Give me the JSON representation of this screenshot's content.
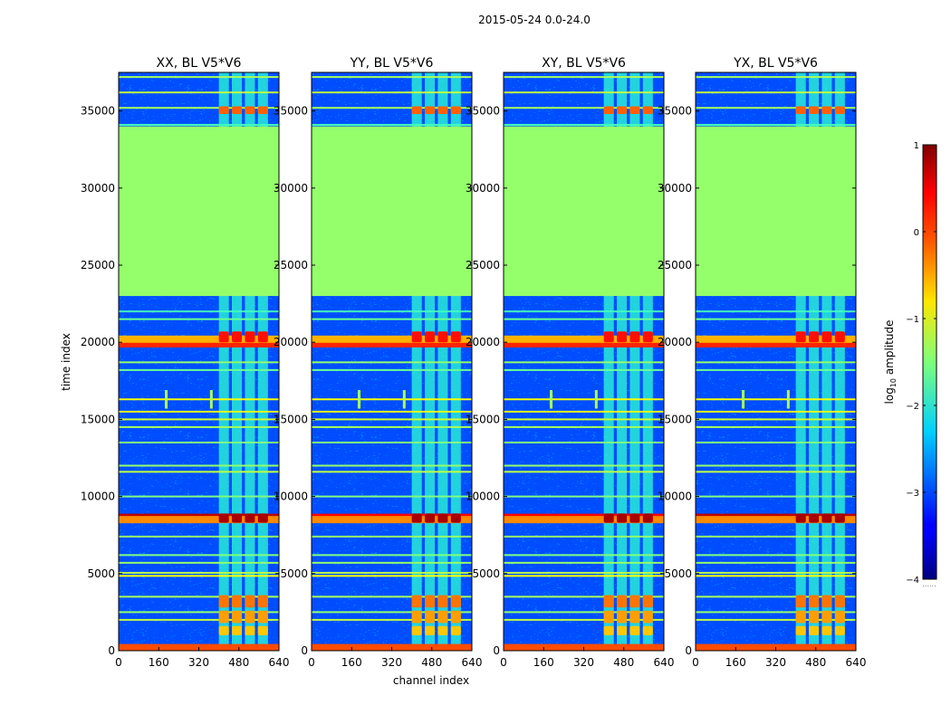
{
  "figure_title": "2015-05-24 0.0-24.0",
  "chart_data": {
    "type": "heatmap",
    "title": "2015-05-24 0.0-24.0",
    "xlabel": "channel index",
    "ylabel": "time index",
    "xlim": [
      0,
      640
    ],
    "ylim": [
      0,
      37500
    ],
    "xticks": [
      "0",
      "160",
      "320",
      "480",
      "640"
    ],
    "yticks": [
      "0",
      "5000",
      "10000",
      "15000",
      "20000",
      "25000",
      "30000",
      "35000"
    ],
    "xtick_values": [
      0,
      160,
      320,
      480,
      640
    ],
    "ytick_values": [
      0,
      5000,
      10000,
      15000,
      20000,
      25000,
      30000,
      35000
    ],
    "panels": [
      {
        "title": "XX, BL V5*V6",
        "strong_band": true
      },
      {
        "title": "YY, BL V5*V6",
        "strong_band": false
      },
      {
        "title": "XY, BL V5*V6",
        "strong_band": false
      },
      {
        "title": "YX, BL V5*V6",
        "strong_band": true
      }
    ],
    "flagged_range": {
      "start": 23000,
      "end": 34000,
      "value": -1.4
    },
    "background_value": -3.0,
    "channel_blocks": [
      [
        400,
        440
      ],
      [
        452,
        492
      ],
      [
        504,
        544
      ],
      [
        556,
        596
      ]
    ],
    "spike_channels": [
      190,
      370
    ],
    "spike_time": 16200,
    "horizontal_lines": [
      {
        "t": 200,
        "value": 0.0
      },
      {
        "t": 2000,
        "value": -1.2
      },
      {
        "t": 2500,
        "value": -1.4
      },
      {
        "t": 3500,
        "value": -1.3
      },
      {
        "t": 4850,
        "value": -0.9
      },
      {
        "t": 5050,
        "value": -1.2
      },
      {
        "t": 5700,
        "value": -1.4
      },
      {
        "t": 6200,
        "value": -1.5
      },
      {
        "t": 7400,
        "value": -1.4
      },
      {
        "t": 8650,
        "value": 0.4
      },
      {
        "t": 8500,
        "value": -0.3
      },
      {
        "t": 10000,
        "value": -1.5
      },
      {
        "t": 11600,
        "value": -1.2
      },
      {
        "t": 12000,
        "value": -1.4
      },
      {
        "t": 13500,
        "value": -1.5
      },
      {
        "t": 14500,
        "value": -1.3
      },
      {
        "t": 15000,
        "value": -1.1
      },
      {
        "t": 15500,
        "value": -1.0
      },
      {
        "t": 16300,
        "value": -0.9
      },
      {
        "t": 18200,
        "value": -1.6
      },
      {
        "t": 18700,
        "value": -1.4
      },
      {
        "t": 19900,
        "value": 0.2
      },
      {
        "t": 20200,
        "value": -0.5
      },
      {
        "t": 21500,
        "value": -1.6
      },
      {
        "t": 22000,
        "value": -1.8
      },
      {
        "t": 34100,
        "value": -1.8
      },
      {
        "t": 35200,
        "value": -1.3
      },
      {
        "t": 36200,
        "value": -1.2
      },
      {
        "t": 37200,
        "value": -1.3
      }
    ],
    "block_hot_ranges": [
      {
        "start": 8300,
        "end": 8900,
        "value": 0.8
      },
      {
        "start": 20000,
        "end": 20700,
        "value": 0.3
      },
      {
        "start": 34800,
        "end": 35300,
        "value": -0.1
      },
      {
        "start": 2800,
        "end": 3600,
        "value": -0.2
      },
      {
        "start": 1800,
        "end": 2600,
        "value": -0.4
      },
      {
        "start": 1000,
        "end": 1600,
        "value": -0.6
      }
    ],
    "colorbar": {
      "label": "log",
      "label_sub": "10",
      "label_rest": " amplitude",
      "range": [
        -4,
        1
      ],
      "ticks": [
        "1",
        "0",
        "−1",
        "−2",
        "−3",
        "−4"
      ],
      "tick_values": [
        1,
        0,
        -1,
        -2,
        -3,
        -4
      ],
      "extension_note": "......"
    }
  }
}
